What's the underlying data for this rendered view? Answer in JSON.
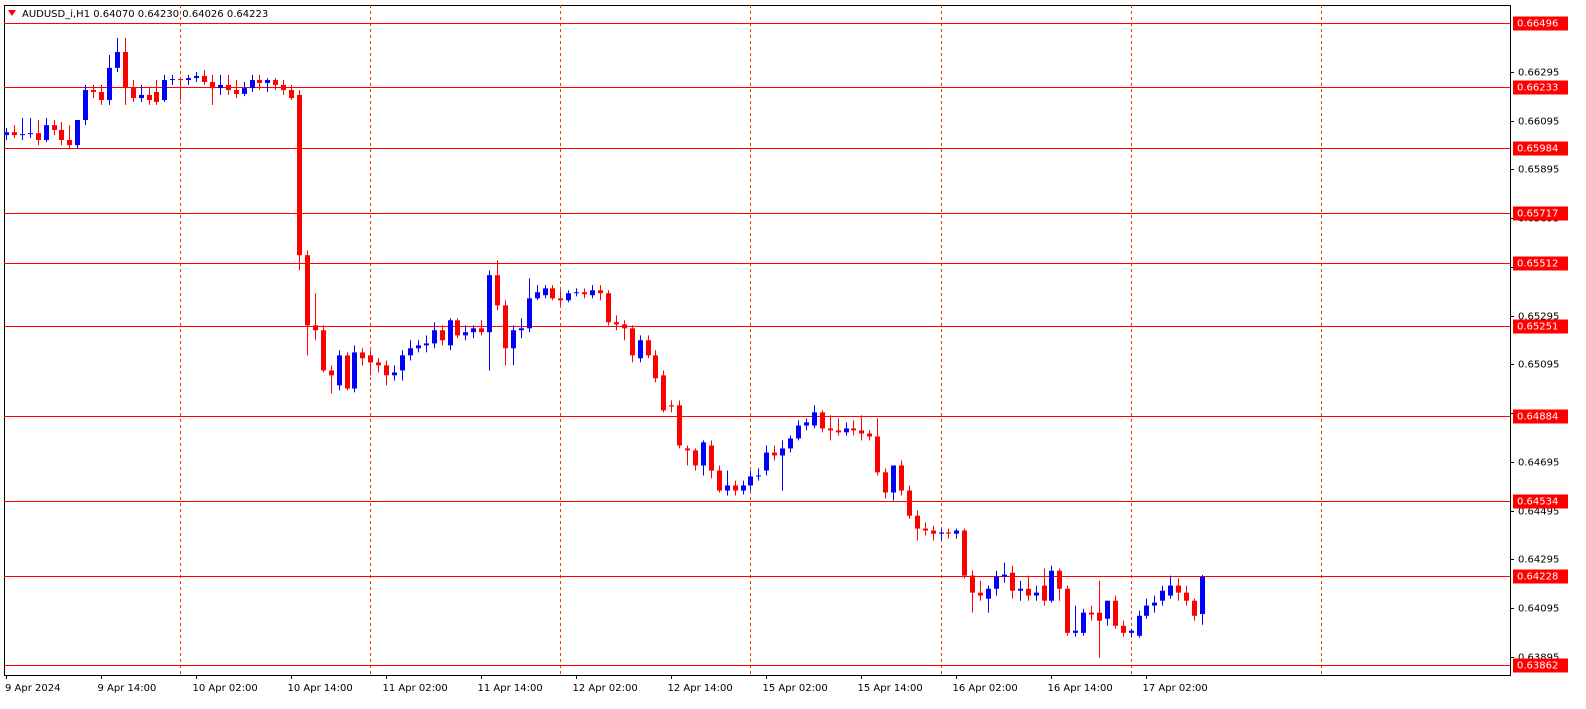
{
  "chart_data": {
    "type": "candlestick",
    "title": "AUDUSD_i,H1  0.64070 0.64230 0.64026 0.64223",
    "up_color": "#0000ff",
    "down_color": "#ff0000",
    "level_color": "#ff0000",
    "separator_color": "#ff3300",
    "ylim": [
      0.6382,
      0.6657
    ],
    "yticks": [
      0.66295,
      0.66095,
      0.65895,
      0.65695,
      0.65495,
      0.65295,
      0.65095,
      0.64895,
      0.64695,
      0.64495,
      0.64295,
      0.64095,
      0.63895
    ],
    "levels": [
      0.66496,
      0.66233,
      0.65984,
      0.65717,
      0.65512,
      0.65251,
      0.64884,
      0.64534,
      0.64228,
      0.63862
    ],
    "categories": [
      "9 Apr 2024",
      null,
      null,
      null,
      null,
      null,
      null,
      null,
      null,
      null,
      null,
      null,
      "9 Apr 14:00",
      null,
      null,
      null,
      null,
      null,
      null,
      null,
      null,
      null,
      null,
      null,
      "10 Apr 02:00",
      null,
      null,
      null,
      null,
      null,
      null,
      null,
      null,
      null,
      null,
      null,
      "10 Apr 14:00",
      null,
      null,
      null,
      null,
      null,
      null,
      null,
      null,
      null,
      null,
      null,
      "11 Apr 02:00",
      null,
      null,
      null,
      null,
      null,
      null,
      null,
      null,
      null,
      null,
      null,
      "11 Apr 14:00",
      null,
      null,
      null,
      null,
      null,
      null,
      null,
      null,
      null,
      null,
      null,
      "12 Apr 02:00",
      null,
      null,
      null,
      null,
      null,
      null,
      null,
      null,
      null,
      null,
      null,
      "12 Apr 14:00",
      null,
      null,
      null,
      null,
      null,
      null,
      null,
      null,
      null,
      null,
      null,
      "15 Apr 02:00",
      null,
      null,
      null,
      null,
      null,
      null,
      null,
      null,
      null,
      null,
      null,
      "15 Apr 14:00",
      null,
      null,
      null,
      null,
      null,
      null,
      null,
      null,
      null,
      null,
      null,
      "16 Apr 02:00",
      null,
      null,
      null,
      null,
      null,
      null,
      null,
      null,
      null,
      null,
      null,
      "16 Apr 14:00",
      null,
      null,
      null,
      null,
      null,
      null,
      null,
      null,
      null,
      null,
      null,
      "17 Apr 02:00",
      null,
      null,
      null,
      null,
      null,
      null,
      null
    ],
    "ohlc": [
      [
        0.66036,
        0.66065,
        0.66016,
        0.66048
      ],
      [
        0.66048,
        0.66077,
        0.66024,
        0.66036
      ],
      [
        0.66036,
        0.66106,
        0.66016,
        0.6604
      ],
      [
        0.6604,
        0.66106,
        0.66024,
        0.66044
      ],
      [
        0.66044,
        0.66098,
        0.65995,
        0.66016
      ],
      [
        0.66016,
        0.66106,
        0.66007,
        0.66077
      ],
      [
        0.66077,
        0.66098,
        0.66036,
        0.66057
      ],
      [
        0.66057,
        0.6609,
        0.65995,
        0.66016
      ],
      [
        0.66016,
        0.66077,
        0.65983,
        0.65995
      ],
      [
        0.65995,
        0.66098,
        0.65983,
        0.66098
      ],
      [
        0.66098,
        0.66242,
        0.66077,
        0.66221
      ],
      [
        0.66221,
        0.66242,
        0.66188,
        0.66213
      ],
      [
        0.66213,
        0.66242,
        0.6616,
        0.6618
      ],
      [
        0.6618,
        0.66365,
        0.6616,
        0.66312
      ],
      [
        0.66312,
        0.66435,
        0.66295,
        0.66377
      ],
      [
        0.66377,
        0.66435,
        0.6616,
        0.66229
      ],
      [
        0.66229,
        0.66262,
        0.66172,
        0.66188
      ],
      [
        0.66188,
        0.66242,
        0.66172,
        0.66201
      ],
      [
        0.66201,
        0.66229,
        0.6616,
        0.6618
      ],
      [
        0.66213,
        0.66262,
        0.6616,
        0.66172
      ],
      [
        0.6618,
        0.66283,
        0.66172,
        0.66262
      ],
      [
        0.66262,
        0.66283,
        0.66242,
        0.66266
      ],
      [
        0.66266,
        0.6627,
        0.6618,
        0.66262
      ],
      [
        0.66262,
        0.66283,
        0.66242,
        0.6627
      ],
      [
        0.6627,
        0.66295,
        0.66254,
        0.66279
      ],
      [
        0.66279,
        0.66303,
        0.66242,
        0.66254
      ],
      [
        0.66254,
        0.66283,
        0.6616,
        0.66229
      ],
      [
        0.66229,
        0.66283,
        0.66201,
        0.66242
      ],
      [
        0.66242,
        0.66283,
        0.66201,
        0.66221
      ],
      [
        0.66221,
        0.66262,
        0.66188,
        0.66205
      ],
      [
        0.66205,
        0.66254,
        0.66196,
        0.66229
      ],
      [
        0.66229,
        0.66283,
        0.66213,
        0.66262
      ],
      [
        0.66262,
        0.66283,
        0.66221,
        0.6625
      ],
      [
        0.6625,
        0.6627,
        0.66213,
        0.66262
      ],
      [
        0.66262,
        0.6627,
        0.66221,
        0.66242
      ],
      [
        0.66242,
        0.66262,
        0.66201,
        0.66221
      ],
      [
        0.66221,
        0.66242,
        0.6618,
        0.66188
      ],
      [
        0.66201,
        0.66221,
        0.65481,
        0.65543
      ],
      [
        0.65543,
        0.65563,
        0.65132,
        0.65255
      ],
      [
        0.65255,
        0.65387,
        0.65194,
        0.65235
      ],
      [
        0.65235,
        0.65255,
        0.65062,
        0.6507
      ],
      [
        0.6507,
        0.65091,
        0.64976,
        0.6505
      ],
      [
        0.65009,
        0.65153,
        0.64988,
        0.65132
      ],
      [
        0.65132,
        0.65144,
        0.64988,
        0.64996
      ],
      [
        0.64996,
        0.65173,
        0.6498,
        0.65144
      ],
      [
        0.65144,
        0.65161,
        0.65091,
        0.6512
      ],
      [
        0.65132,
        0.65153,
        0.6505,
        0.65103
      ],
      [
        0.65103,
        0.6512,
        0.65062,
        0.65091
      ],
      [
        0.65091,
        0.65111,
        0.65009,
        0.6505
      ],
      [
        0.6505,
        0.65091,
        0.65029,
        0.65062
      ],
      [
        0.6507,
        0.65153,
        0.65029,
        0.65132
      ],
      [
        0.65132,
        0.65194,
        0.65111,
        0.65161
      ],
      [
        0.65161,
        0.65194,
        0.65144,
        0.65173
      ],
      [
        0.65173,
        0.65214,
        0.65144,
        0.65181
      ],
      [
        0.65181,
        0.65268,
        0.65161,
        0.65235
      ],
      [
        0.65235,
        0.65255,
        0.65173,
        0.65194
      ],
      [
        0.65173,
        0.65284,
        0.65153,
        0.65276
      ],
      [
        0.65276,
        0.65284,
        0.65202,
        0.65214
      ],
      [
        0.65214,
        0.65255,
        0.65194,
        0.65227
      ],
      [
        0.65227,
        0.65255,
        0.65202,
        0.65243
      ],
      [
        0.65243,
        0.65276,
        0.65214,
        0.65227
      ],
      [
        0.65227,
        0.65481,
        0.6507,
        0.65461
      ],
      [
        0.65461,
        0.65522,
        0.65317,
        0.65337
      ],
      [
        0.65337,
        0.65358,
        0.65091,
        0.65161
      ],
      [
        0.65161,
        0.65255,
        0.65091,
        0.65235
      ],
      [
        0.65235,
        0.65284,
        0.65202,
        0.65243
      ],
      [
        0.65243,
        0.65448,
        0.65227,
        0.65366
      ],
      [
        0.65366,
        0.6542,
        0.65358,
        0.65391
      ],
      [
        0.65379,
        0.6542,
        0.65366,
        0.65407
      ],
      [
        0.65407,
        0.6542,
        0.65358,
        0.65366
      ],
      [
        0.65366,
        0.65399,
        0.65337,
        0.65358
      ],
      [
        0.65358,
        0.65399,
        0.6535,
        0.65387
      ],
      [
        0.65387,
        0.65407,
        0.65374,
        0.65391
      ],
      [
        0.65391,
        0.65407,
        0.65366,
        0.65383
      ],
      [
        0.65379,
        0.6542,
        0.65366,
        0.65399
      ],
      [
        0.65399,
        0.6542,
        0.65358,
        0.65387
      ],
      [
        0.65387,
        0.65399,
        0.65255,
        0.65268
      ],
      [
        0.65268,
        0.65296,
        0.65235,
        0.65259
      ],
      [
        0.65259,
        0.65276,
        0.65194,
        0.65243
      ],
      [
        0.65243,
        0.65255,
        0.65103,
        0.65132
      ],
      [
        0.6512,
        0.65214,
        0.65103,
        0.65194
      ],
      [
        0.65194,
        0.65214,
        0.6512,
        0.65132
      ],
      [
        0.65132,
        0.65153,
        0.65021,
        0.65038
      ],
      [
        0.6505,
        0.6507,
        0.64898,
        0.64906
      ],
      [
        0.64927,
        0.64947,
        0.64898,
        0.64922
      ],
      [
        0.64927,
        0.64947,
        0.6475,
        0.64762
      ],
      [
        0.6475,
        0.64762,
        0.6468,
        0.64742
      ],
      [
        0.64742,
        0.6475,
        0.64659,
        0.6468
      ],
      [
        0.6468,
        0.64783,
        0.64639,
        0.64775
      ],
      [
        0.64762,
        0.64783,
        0.64627,
        0.64659
      ],
      [
        0.64659,
        0.6468,
        0.64569,
        0.64577
      ],
      [
        0.64577,
        0.64659,
        0.64557,
        0.64598
      ],
      [
        0.64598,
        0.64618,
        0.64557,
        0.64577
      ],
      [
        0.64577,
        0.64618,
        0.64561,
        0.64598
      ],
      [
        0.64598,
        0.64659,
        0.64577,
        0.64635
      ],
      [
        0.64635,
        0.64668,
        0.64618,
        0.64639
      ],
      [
        0.64659,
        0.64762,
        0.64639,
        0.64733
      ],
      [
        0.64733,
        0.64762,
        0.64701,
        0.64721
      ],
      [
        0.64721,
        0.64783,
        0.64577,
        0.6475
      ],
      [
        0.6475,
        0.64803,
        0.64733,
        0.64791
      ],
      [
        0.64791,
        0.64865,
        0.64783,
        0.64844
      ],
      [
        0.64844,
        0.64873,
        0.64824,
        0.64857
      ],
      [
        0.64844,
        0.64927,
        0.64832,
        0.64898
      ],
      [
        0.64898,
        0.64906,
        0.64816,
        0.64832
      ],
      [
        0.64832,
        0.64886,
        0.64783,
        0.64824
      ],
      [
        0.64824,
        0.64873,
        0.64803,
        0.64816
      ],
      [
        0.64816,
        0.64857,
        0.64803,
        0.64832
      ],
      [
        0.64832,
        0.64865,
        0.64803,
        0.64824
      ],
      [
        0.64824,
        0.64886,
        0.64783,
        0.64811
      ],
      [
        0.64811,
        0.64824,
        0.64783,
        0.64799
      ],
      [
        0.64799,
        0.64873,
        0.64639,
        0.64652
      ],
      [
        0.64652,
        0.64668,
        0.64544,
        0.64569
      ],
      [
        0.64569,
        0.6468,
        0.64536,
        0.6468
      ],
      [
        0.6468,
        0.64701,
        0.64557,
        0.64577
      ],
      [
        0.64577,
        0.64598,
        0.64462,
        0.64474
      ],
      [
        0.64474,
        0.64495,
        0.64372,
        0.64421
      ],
      [
        0.64421,
        0.64446,
        0.64392,
        0.64413
      ],
      [
        0.64413,
        0.64433,
        0.64372,
        0.644
      ],
      [
        0.644,
        0.64421,
        0.64372,
        0.64405
      ],
      [
        0.64405,
        0.64421,
        0.6438,
        0.644
      ],
      [
        0.644,
        0.64421,
        0.6438,
        0.64413
      ],
      [
        0.64413,
        0.64421,
        0.64216,
        0.64228
      ],
      [
        0.64228,
        0.64249,
        0.64076,
        0.64158
      ],
      [
        0.64158,
        0.64207,
        0.64125,
        0.64146
      ],
      [
        0.64133,
        0.64187,
        0.64076,
        0.64174
      ],
      [
        0.64174,
        0.64248,
        0.64146,
        0.64224
      ],
      [
        0.64224,
        0.64281,
        0.64199,
        0.64232
      ],
      [
        0.6424,
        0.64269,
        0.64133,
        0.64166
      ],
      [
        0.64166,
        0.64207,
        0.64125,
        0.64174
      ],
      [
        0.64174,
        0.64228,
        0.64125,
        0.64146
      ],
      [
        0.64146,
        0.64187,
        0.64125,
        0.64158
      ],
      [
        0.64187,
        0.64257,
        0.64105,
        0.64125
      ],
      [
        0.64125,
        0.64269,
        0.64117,
        0.64248
      ],
      [
        0.64248,
        0.64257,
        0.64125,
        0.64174
      ],
      [
        0.64174,
        0.64187,
        0.63981,
        0.63993
      ],
      [
        0.63993,
        0.64105,
        0.63977,
        0.64002
      ],
      [
        0.63993,
        0.64092,
        0.63981,
        0.64076
      ],
      [
        0.64076,
        0.64105,
        0.64043,
        0.64068
      ],
      [
        0.64076,
        0.64207,
        0.63891,
        0.64043
      ],
      [
        0.64051,
        0.64125,
        0.64022,
        0.64125
      ],
      [
        0.64125,
        0.64146,
        0.6401,
        0.64022
      ],
      [
        0.64022,
        0.64043,
        0.63977,
        0.63993
      ],
      [
        0.63993,
        0.6401,
        0.63977,
        0.64002
      ],
      [
        0.63981,
        0.64084,
        0.63973,
        0.64063
      ],
      [
        0.64063,
        0.64133,
        0.64051,
        0.64105
      ],
      [
        0.64105,
        0.64146,
        0.64076,
        0.64117
      ],
      [
        0.64125,
        0.64187,
        0.64105,
        0.64166
      ],
      [
        0.64146,
        0.64228,
        0.64133,
        0.64187
      ],
      [
        0.64187,
        0.64216,
        0.64125,
        0.64158
      ],
      [
        0.64158,
        0.64187,
        0.64105,
        0.64125
      ],
      [
        0.64125,
        0.64133,
        0.64043,
        0.64063
      ],
      [
        0.6407,
        0.6423,
        0.64026,
        0.64223
      ]
    ]
  }
}
